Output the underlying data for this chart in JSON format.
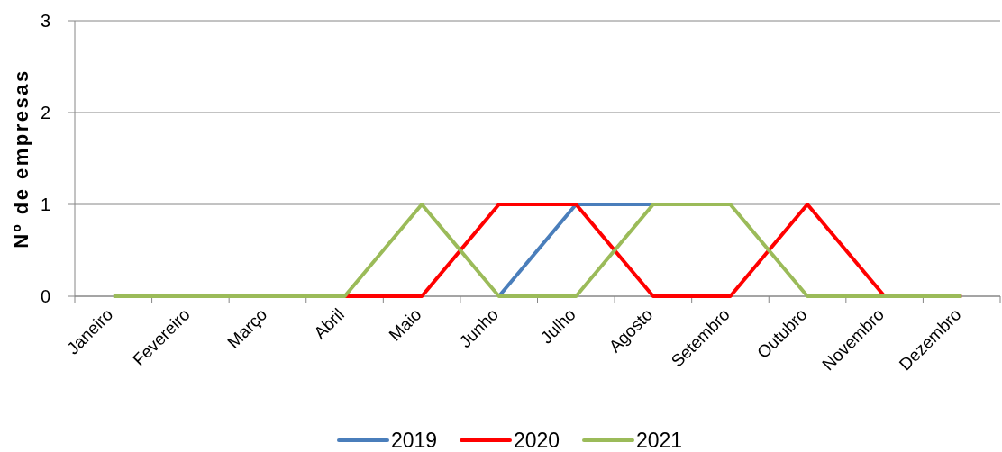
{
  "chart_data": {
    "type": "line",
    "ylabel": "Nº de empresas",
    "categories": [
      "Janeiro",
      "Fevereiro",
      "Março",
      "Abril",
      "Maio",
      "Junho",
      "Julho",
      "Agosto",
      "Setembro",
      "Outubro",
      "Novembro",
      "Dezembro"
    ],
    "series": [
      {
        "name": "2019",
        "color": "#4a7ebb",
        "values": [
          null,
          null,
          null,
          null,
          null,
          0,
          1,
          1,
          null,
          null,
          null,
          null
        ]
      },
      {
        "name": "2020",
        "color": "#ff0000",
        "values": [
          null,
          null,
          null,
          0,
          0,
          1,
          1,
          0,
          0,
          1,
          0,
          0
        ]
      },
      {
        "name": "2021",
        "color": "#9bbb59",
        "values": [
          0,
          0,
          0,
          0,
          1,
          0,
          0,
          1,
          1,
          0,
          0,
          0
        ]
      }
    ],
    "ylim": [
      0,
      3
    ],
    "yticks": [
      0,
      1,
      2,
      3
    ],
    "grid": "y",
    "legend": "bottom",
    "marker": "none",
    "line_style": "solid"
  }
}
